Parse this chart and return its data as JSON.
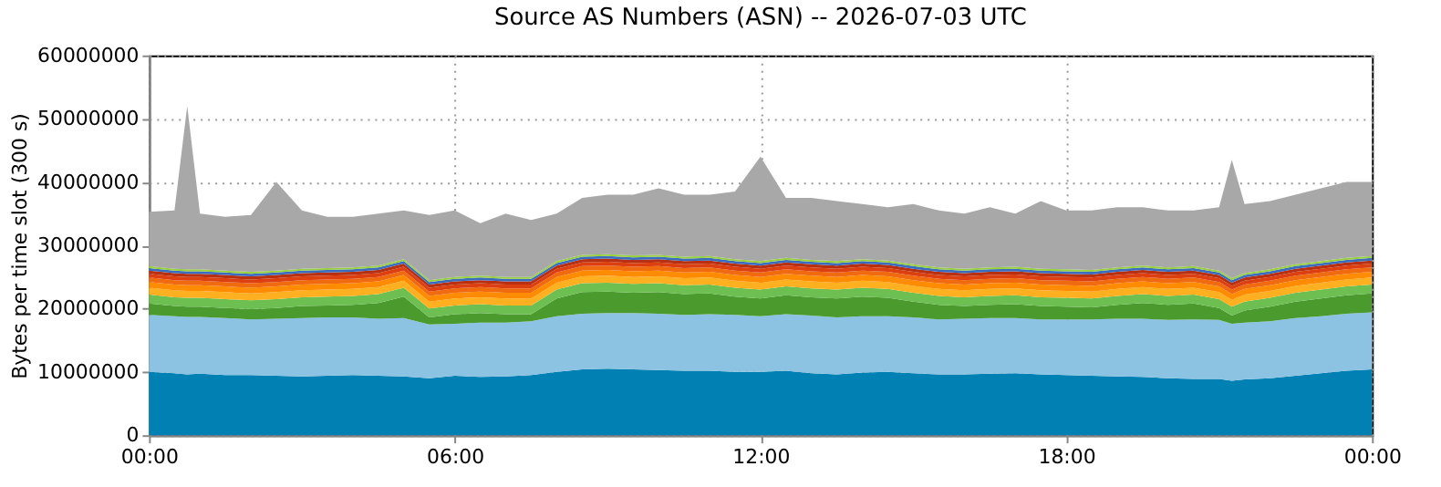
{
  "chart_data": {
    "type": "area",
    "title": "Source AS Numbers (ASN) -- 2026-07-03 UTC",
    "ylabel": "Bytes per time slot (300 s)",
    "stacked": true,
    "grid": true,
    "x": [
      0,
      0.5,
      0.75,
      1,
      1.5,
      2,
      2.5,
      3,
      3.5,
      4,
      4.5,
      5,
      5.5,
      6,
      6.5,
      7,
      7.5,
      8,
      8.5,
      9,
      9.5,
      10,
      10.5,
      11,
      11.5,
      12,
      12.5,
      13,
      13.5,
      14,
      14.5,
      15,
      15.5,
      16,
      16.5,
      17,
      17.5,
      18,
      18.5,
      19,
      19.5,
      20,
      20.5,
      21,
      21.25,
      21.5,
      22,
      22.5,
      23,
      23.5,
      24
    ],
    "xlim": [
      0,
      24
    ],
    "xticks": [
      {
        "value": 0,
        "label": "00:00"
      },
      {
        "value": 6,
        "label": "06:00"
      },
      {
        "value": 12,
        "label": "12:00"
      },
      {
        "value": 18,
        "label": "18:00"
      },
      {
        "value": 24,
        "label": "00:00"
      }
    ],
    "ylim": [
      0,
      60000000
    ],
    "yticks": [
      0,
      10000000,
      20000000,
      30000000,
      40000000,
      50000000,
      60000000
    ],
    "series": [
      {
        "color": "#0080b3",
        "values": [
          10000000.0,
          9800000.0,
          9600000.0,
          9700000.0,
          9500000.0,
          9500000.0,
          9400000.0,
          9300000.0,
          9400000.0,
          9500000.0,
          9400000.0,
          9300000.0,
          9000000.0,
          9400000.0,
          9200000.0,
          9300000.0,
          9500000.0,
          10000000.0,
          10400000.0,
          10500000.0,
          10400000.0,
          10300000.0,
          10200000.0,
          10200000.0,
          10000000.0,
          10000000.0,
          10200000.0,
          9800000.0,
          9600000.0,
          9900000.0,
          10000000.0,
          9800000.0,
          9600000.0,
          9600000.0,
          9700000.0,
          9800000.0,
          9600000.0,
          9500000.0,
          9400000.0,
          9300000.0,
          9200000.0,
          9000000.0,
          8900000.0,
          8900000.0,
          8600000.0,
          8800000.0,
          9000000.0,
          9400000.0,
          9800000.0,
          10200000.0,
          10400000.0
        ]
      },
      {
        "color": "#8cc3e2",
        "values": [
          9000000.0,
          9000000.0,
          9100000.0,
          9000000.0,
          9000000.0,
          8800000.0,
          9000000.0,
          9200000.0,
          9200000.0,
          9100000.0,
          9000000.0,
          9200000.0,
          8500000.0,
          8200000.0,
          8600000.0,
          8500000.0,
          8500000.0,
          8800000.0,
          8800000.0,
          8800000.0,
          8900000.0,
          8900000.0,
          8800000.0,
          8900000.0,
          9000000.0,
          8800000.0,
          8900000.0,
          9100000.0,
          9000000.0,
          8900000.0,
          8800000.0,
          8800000.0,
          8700000.0,
          8800000.0,
          8800000.0,
          8700000.0,
          8700000.0,
          8800000.0,
          8900000.0,
          9100000.0,
          9200000.0,
          9200000.0,
          9400000.0,
          9300000.0,
          9000000.0,
          9000000.0,
          9000000.0,
          9100000.0,
          9000000.0,
          9000000.0,
          9000000.0
        ]
      },
      {
        "color": "#4a9a2e",
        "values": [
          1800000.0,
          1600000.0,
          1600000.0,
          1600000.0,
          1600000.0,
          1600000.0,
          1700000.0,
          1900000.0,
          1900000.0,
          2000000.0,
          2500000.0,
          3400000.0,
          1100000.0,
          1500000.0,
          1500000.0,
          1300000.0,
          1100000.0,
          2800000.0,
          3400000.0,
          3400000.0,
          3200000.0,
          3400000.0,
          3300000.0,
          3300000.0,
          2900000.0,
          2800000.0,
          3000000.0,
          2900000.0,
          3000000.0,
          3100000.0,
          2900000.0,
          2500000.0,
          2300000.0,
          2000000.0,
          2100000.0,
          2200000.0,
          2100000.0,
          2000000.0,
          1900000.0,
          2200000.0,
          2500000.0,
          2400000.0,
          2500000.0,
          1900000.0,
          1300000.0,
          1900000.0,
          2300000.0,
          2600000.0,
          2800000.0,
          2900000.0,
          3000000.0
        ]
      },
      {
        "color": "#6cbf50",
        "values": [
          1400000.0,
          1400000.0,
          1400000.0,
          1400000.0,
          1400000.0,
          1400000.0,
          1400000.0,
          1400000.0,
          1400000.0,
          1400000.0,
          1400000.0,
          1400000.0,
          1400000.0,
          1400000.0,
          1400000.0,
          1400000.0,
          1400000.0,
          1400000.0,
          1400000.0,
          1400000.0,
          1400000.0,
          1400000.0,
          1400000.0,
          1400000.0,
          1400000.0,
          1400000.0,
          1400000.0,
          1400000.0,
          1400000.0,
          1400000.0,
          1400000.0,
          1400000.0,
          1400000.0,
          1400000.0,
          1400000.0,
          1400000.0,
          1400000.0,
          1400000.0,
          1400000.0,
          1400000.0,
          1400000.0,
          1400000.0,
          1400000.0,
          1400000.0,
          1400000.0,
          1400000.0,
          1400000.0,
          1400000.0,
          1400000.0,
          1400000.0,
          1400000.0
        ]
      },
      {
        "color": "#ffb020",
        "values": [
          1100000.0,
          1100000.0,
          1100000.0,
          1100000.0,
          1100000.0,
          1100000.0,
          1100000.0,
          1100000.0,
          1100000.0,
          1100000.0,
          1100000.0,
          1100000.0,
          1100000.0,
          1100000.0,
          1100000.0,
          1100000.0,
          1100000.0,
          1100000.0,
          1100000.0,
          1100000.0,
          1100000.0,
          1100000.0,
          1100000.0,
          1100000.0,
          1100000.0,
          1100000.0,
          1100000.0,
          1100000.0,
          1100000.0,
          1100000.0,
          1100000.0,
          1100000.0,
          1100000.0,
          1100000.0,
          1100000.0,
          1100000.0,
          1100000.0,
          1100000.0,
          1100000.0,
          1100000.0,
          1100000.0,
          1100000.0,
          1100000.0,
          1100000.0,
          1100000.0,
          1100000.0,
          1100000.0,
          1100000.0,
          1100000.0,
          1100000.0,
          1100000.0
        ]
      },
      {
        "color": "#ff8c00",
        "values": [
          900000.0,
          900000.0,
          900000.0,
          900000.0,
          900000.0,
          900000.0,
          900000.0,
          900000.0,
          900000.0,
          900000.0,
          900000.0,
          900000.0,
          900000.0,
          900000.0,
          900000.0,
          900000.0,
          900000.0,
          900000.0,
          900000.0,
          900000.0,
          900000.0,
          900000.0,
          900000.0,
          900000.0,
          900000.0,
          900000.0,
          900000.0,
          900000.0,
          900000.0,
          900000.0,
          900000.0,
          900000.0,
          900000.0,
          900000.0,
          900000.0,
          900000.0,
          900000.0,
          900000.0,
          900000.0,
          900000.0,
          900000.0,
          900000.0,
          900000.0,
          900000.0,
          900000.0,
          900000.0,
          900000.0,
          900000.0,
          900000.0,
          900000.0,
          900000.0
        ]
      },
      {
        "color": "#f06a10",
        "values": [
          700000.0,
          700000.0,
          700000.0,
          700000.0,
          700000.0,
          700000.0,
          700000.0,
          700000.0,
          700000.0,
          700000.0,
          700000.0,
          700000.0,
          700000.0,
          700000.0,
          700000.0,
          700000.0,
          700000.0,
          700000.0,
          700000.0,
          700000.0,
          700000.0,
          700000.0,
          700000.0,
          700000.0,
          700000.0,
          700000.0,
          700000.0,
          700000.0,
          700000.0,
          700000.0,
          700000.0,
          700000.0,
          700000.0,
          700000.0,
          700000.0,
          700000.0,
          700000.0,
          700000.0,
          700000.0,
          700000.0,
          700000.0,
          700000.0,
          700000.0,
          700000.0,
          700000.0,
          700000.0,
          700000.0,
          700000.0,
          700000.0,
          700000.0,
          700000.0
        ]
      },
      {
        "color": "#dd4010",
        "values": [
          600000.0,
          600000.0,
          600000.0,
          600000.0,
          600000.0,
          600000.0,
          600000.0,
          600000.0,
          600000.0,
          600000.0,
          600000.0,
          600000.0,
          600000.0,
          600000.0,
          600000.0,
          600000.0,
          600000.0,
          600000.0,
          600000.0,
          600000.0,
          600000.0,
          600000.0,
          600000.0,
          600000.0,
          600000.0,
          600000.0,
          600000.0,
          600000.0,
          600000.0,
          600000.0,
          600000.0,
          600000.0,
          600000.0,
          600000.0,
          600000.0,
          600000.0,
          600000.0,
          600000.0,
          600000.0,
          600000.0,
          600000.0,
          600000.0,
          600000.0,
          600000.0,
          600000.0,
          600000.0,
          600000.0,
          600000.0,
          600000.0,
          600000.0,
          600000.0
        ]
      },
      {
        "color": "#b83010",
        "values": [
          500000.0,
          500000.0,
          500000.0,
          500000.0,
          500000.0,
          500000.0,
          500000.0,
          500000.0,
          500000.0,
          500000.0,
          500000.0,
          500000.0,
          500000.0,
          500000.0,
          500000.0,
          500000.0,
          500000.0,
          500000.0,
          500000.0,
          500000.0,
          500000.0,
          500000.0,
          500000.0,
          500000.0,
          500000.0,
          500000.0,
          500000.0,
          500000.0,
          500000.0,
          500000.0,
          500000.0,
          500000.0,
          500000.0,
          500000.0,
          500000.0,
          500000.0,
          500000.0,
          500000.0,
          500000.0,
          500000.0,
          500000.0,
          500000.0,
          500000.0,
          500000.0,
          500000.0,
          500000.0,
          500000.0,
          500000.0,
          500000.0,
          500000.0,
          500000.0
        ]
      },
      {
        "color": "#3a6cc0",
        "values": [
          400000.0,
          400000.0,
          400000.0,
          400000.0,
          400000.0,
          400000.0,
          400000.0,
          400000.0,
          400000.0,
          400000.0,
          400000.0,
          400000.0,
          400000.0,
          400000.0,
          400000.0,
          400000.0,
          400000.0,
          400000.0,
          400000.0,
          400000.0,
          400000.0,
          400000.0,
          400000.0,
          400000.0,
          400000.0,
          400000.0,
          400000.0,
          400000.0,
          400000.0,
          400000.0,
          400000.0,
          400000.0,
          400000.0,
          400000.0,
          400000.0,
          400000.0,
          400000.0,
          400000.0,
          400000.0,
          400000.0,
          400000.0,
          400000.0,
          400000.0,
          400000.0,
          400000.0,
          400000.0,
          400000.0,
          400000.0,
          400000.0,
          400000.0,
          400000.0
        ]
      },
      {
        "color": "#98d040",
        "values": [
          300000.0,
          300000.0,
          300000.0,
          300000.0,
          300000.0,
          300000.0,
          300000.0,
          300000.0,
          300000.0,
          300000.0,
          300000.0,
          300000.0,
          300000.0,
          300000.0,
          300000.0,
          300000.0,
          300000.0,
          300000.0,
          300000.0,
          300000.0,
          300000.0,
          300000.0,
          300000.0,
          300000.0,
          300000.0,
          300000.0,
          300000.0,
          300000.0,
          300000.0,
          300000.0,
          300000.0,
          300000.0,
          300000.0,
          300000.0,
          300000.0,
          300000.0,
          300000.0,
          300000.0,
          300000.0,
          300000.0,
          300000.0,
          300000.0,
          300000.0,
          300000.0,
          300000.0,
          300000.0,
          300000.0,
          300000.0,
          300000.0,
          300000.0,
          300000.0
        ]
      },
      {
        "color": "#a8a8a8",
        "values": [
          8600000.0,
          9200000.0,
          25800000.0,
          8800000.0,
          8500000.0,
          9000000.0,
          14000000.0,
          9200000.0,
          8100000.0,
          8000000.0,
          8200000.0,
          7700000.0,
          10300000.0,
          10500000.0,
          8300000.0,
          10000000.0,
          9000000.0,
          7500000.0,
          9000000.0,
          9400000.0,
          9600000.0,
          10500000.0,
          9800000.0,
          9700000.0,
          10700000.0,
          16500000.0,
          9500000.0,
          9800000.0,
          9500000.0,
          8700000.0,
          8400000.0,
          9500000.0,
          9000000.0,
          8700000.0,
          9500000.0,
          8400000.0,
          10700000.0,
          9300000.0,
          9400000.0,
          9500000.0,
          9200000.0,
          9000000.0,
          8800000.0,
          10000000.0,
          18700000.0,
          10900000.0,
          10800000.0,
          11000000.0,
          11500000.0,
          12000000.0,
          11700000.0
        ]
      }
    ]
  }
}
